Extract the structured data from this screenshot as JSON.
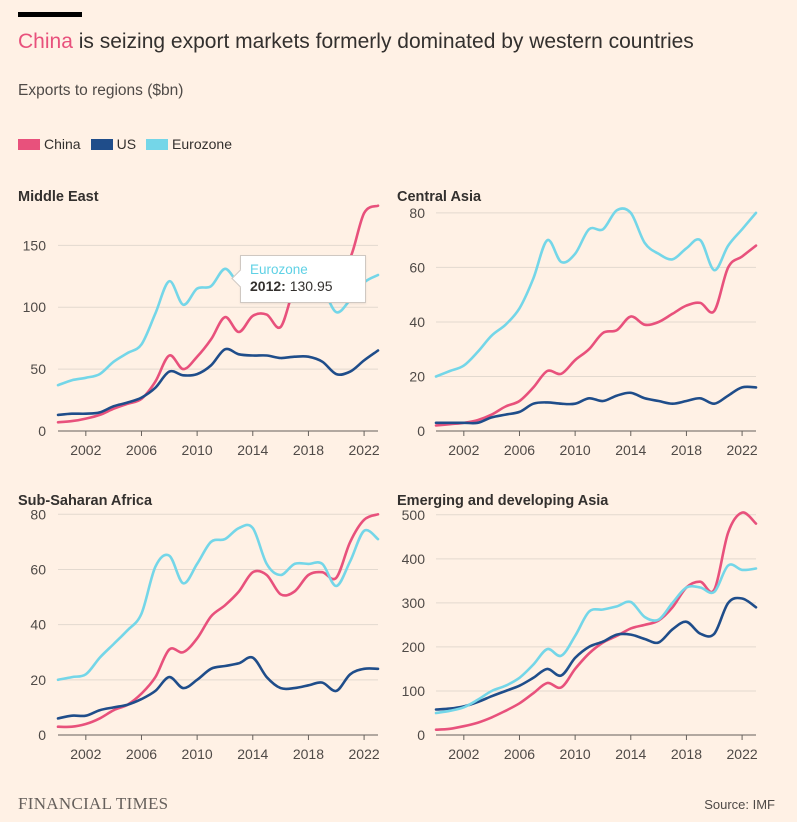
{
  "title": {
    "highlight": "China",
    "rest": " is seizing export markets formerly dominated by western countries"
  },
  "subtitle": "Exports to regions ($bn)",
  "legend": [
    {
      "name": "China",
      "color": "#e8517c"
    },
    {
      "name": "US",
      "color": "#1f4d8a"
    },
    {
      "name": "Eurozone",
      "color": "#74d6e8"
    }
  ],
  "tooltip": {
    "series": "Eurozone",
    "year": "2012:",
    "value": "130.95"
  },
  "footer": {
    "brand": "FINANCIAL TIMES",
    "source": "Source: IMF"
  },
  "chart_data": [
    {
      "type": "line",
      "title": "Middle East",
      "ylim": [
        0,
        185
      ],
      "yticks": [
        0,
        50,
        100,
        150
      ],
      "xticks": [
        2002,
        2006,
        2010,
        2014,
        2018,
        2022
      ],
      "xlim": [
        2000,
        2023
      ],
      "series": [
        {
          "name": "China",
          "color": "#e8517c",
          "x": [
            2000,
            2001,
            2002,
            2003,
            2004,
            2005,
            2006,
            2007,
            2008,
            2009,
            2010,
            2011,
            2012,
            2013,
            2014,
            2015,
            2016,
            2017,
            2018,
            2019,
            2020,
            2021,
            2022,
            2023
          ],
          "y": [
            7,
            8,
            10,
            13,
            18,
            22,
            26,
            40,
            61,
            50,
            60,
            74,
            92,
            80,
            93,
            94,
            84,
            115,
            120,
            127,
            135,
            140,
            176,
            182
          ]
        },
        {
          "name": "US",
          "color": "#1f4d8a",
          "x": [
            2000,
            2001,
            2002,
            2003,
            2004,
            2005,
            2006,
            2007,
            2008,
            2009,
            2010,
            2011,
            2012,
            2013,
            2014,
            2015,
            2016,
            2017,
            2018,
            2019,
            2020,
            2021,
            2022,
            2023
          ],
          "y": [
            13,
            14,
            14,
            15,
            20,
            23,
            27,
            35,
            48,
            45,
            46,
            53,
            66,
            62,
            61,
            61,
            59,
            60,
            60,
            56,
            46,
            48,
            57,
            65
          ]
        },
        {
          "name": "Eurozone",
          "color": "#74d6e8",
          "x": [
            2000,
            2001,
            2002,
            2003,
            2004,
            2005,
            2006,
            2007,
            2008,
            2009,
            2010,
            2011,
            2012,
            2013,
            2014,
            2015,
            2016,
            2017,
            2018,
            2019,
            2020,
            2021,
            2022,
            2023
          ],
          "y": [
            37,
            41,
            43,
            46,
            56,
            63,
            70,
            95,
            121,
            102,
            115,
            117,
            131,
            120,
            126,
            124,
            116,
            120,
            119,
            115,
            96,
            106,
            120,
            126
          ]
        }
      ]
    },
    {
      "type": "line",
      "title": "Central Asia",
      "ylim": [
        0,
        84
      ],
      "yticks": [
        0,
        20,
        40,
        60,
        80
      ],
      "xticks": [
        2002,
        2006,
        2010,
        2014,
        2018,
        2022
      ],
      "xlim": [
        2000,
        2023
      ],
      "series": [
        {
          "name": "China",
          "color": "#e8517c",
          "x": [
            2000,
            2001,
            2002,
            2003,
            2004,
            2005,
            2006,
            2007,
            2008,
            2009,
            2010,
            2011,
            2012,
            2013,
            2014,
            2015,
            2016,
            2017,
            2018,
            2019,
            2020,
            2021,
            2022,
            2023
          ],
          "y": [
            2,
            2.5,
            3,
            4,
            6,
            9,
            11,
            16,
            22,
            21,
            26,
            30,
            36,
            37,
            42,
            39,
            40,
            43,
            46,
            47,
            44,
            60,
            64,
            68
          ]
        },
        {
          "name": "US",
          "color": "#1f4d8a",
          "x": [
            2000,
            2001,
            2002,
            2003,
            2004,
            2005,
            2006,
            2007,
            2008,
            2009,
            2010,
            2011,
            2012,
            2013,
            2014,
            2015,
            2016,
            2017,
            2018,
            2019,
            2020,
            2021,
            2022,
            2023
          ],
          "y": [
            3,
            3,
            3,
            3,
            5,
            6,
            7,
            10,
            10.5,
            10,
            10,
            12,
            11,
            13,
            14,
            12,
            11,
            10,
            11,
            12,
            10,
            13,
            16,
            16
          ]
        },
        {
          "name": "Eurozone",
          "color": "#74d6e8",
          "x": [
            2000,
            2001,
            2002,
            2003,
            2004,
            2005,
            2006,
            2007,
            2008,
            2009,
            2010,
            2011,
            2012,
            2013,
            2014,
            2015,
            2016,
            2017,
            2018,
            2019,
            2020,
            2021,
            2022,
            2023
          ],
          "y": [
            20,
            22,
            24,
            29,
            35,
            39,
            45,
            56,
            70,
            62,
            65,
            74,
            74,
            81,
            80,
            69,
            65,
            63,
            67,
            70,
            59,
            68,
            74,
            80
          ]
        }
      ]
    },
    {
      "type": "line",
      "title": "Sub-Saharan Africa",
      "ylim": [
        0,
        83
      ],
      "yticks": [
        0,
        20,
        40,
        60,
        80
      ],
      "xticks": [
        2002,
        2006,
        2010,
        2014,
        2018,
        2022
      ],
      "xlim": [
        2000,
        2023
      ],
      "series": [
        {
          "name": "China",
          "color": "#e8517c",
          "x": [
            2000,
            2001,
            2002,
            2003,
            2004,
            2005,
            2006,
            2007,
            2008,
            2009,
            2010,
            2011,
            2012,
            2013,
            2014,
            2015,
            2016,
            2017,
            2018,
            2019,
            2020,
            2021,
            2022,
            2023
          ],
          "y": [
            3,
            3,
            4,
            6,
            9,
            11,
            15,
            21,
            31,
            30,
            35,
            43,
            47,
            52,
            59,
            58,
            51,
            52,
            58,
            59,
            57,
            70,
            78,
            80
          ]
        },
        {
          "name": "US",
          "color": "#1f4d8a",
          "x": [
            2000,
            2001,
            2002,
            2003,
            2004,
            2005,
            2006,
            2007,
            2008,
            2009,
            2010,
            2011,
            2012,
            2013,
            2014,
            2015,
            2016,
            2017,
            2018,
            2019,
            2020,
            2021,
            2022,
            2023
          ],
          "y": [
            6,
            7,
            7,
            9,
            10,
            11,
            13,
            16,
            21,
            17,
            20,
            24,
            25,
            26,
            28,
            21,
            17,
            17,
            18,
            19,
            16,
            22,
            24,
            24
          ]
        },
        {
          "name": "Eurozone",
          "color": "#74d6e8",
          "x": [
            2000,
            2001,
            2002,
            2003,
            2004,
            2005,
            2006,
            2007,
            2008,
            2009,
            2010,
            2011,
            2012,
            2013,
            2014,
            2015,
            2016,
            2017,
            2018,
            2019,
            2020,
            2021,
            2022,
            2023
          ],
          "y": [
            20,
            21,
            22,
            28,
            33,
            38,
            44,
            61,
            65,
            55,
            62,
            70,
            71,
            75,
            75,
            62,
            58,
            62,
            62,
            62,
            54,
            63,
            74,
            71
          ]
        }
      ]
    },
    {
      "type": "line",
      "title": "Emerging and developing Asia",
      "ylim": [
        0,
        520
      ],
      "yticks": [
        0,
        100,
        200,
        300,
        400,
        500
      ],
      "xticks": [
        2002,
        2006,
        2010,
        2014,
        2018,
        2022
      ],
      "xlim": [
        2000,
        2023
      ],
      "series": [
        {
          "name": "China",
          "color": "#e8517c",
          "x": [
            2000,
            2001,
            2002,
            2003,
            2004,
            2005,
            2006,
            2007,
            2008,
            2009,
            2010,
            2011,
            2012,
            2013,
            2014,
            2015,
            2016,
            2017,
            2018,
            2019,
            2020,
            2021,
            2022,
            2023
          ],
          "y": [
            12,
            14,
            20,
            28,
            40,
            55,
            72,
            95,
            118,
            108,
            150,
            185,
            210,
            225,
            242,
            250,
            260,
            290,
            335,
            348,
            330,
            460,
            505,
            480
          ]
        },
        {
          "name": "US",
          "color": "#1f4d8a",
          "x": [
            2000,
            2001,
            2002,
            2003,
            2004,
            2005,
            2006,
            2007,
            2008,
            2009,
            2010,
            2011,
            2012,
            2013,
            2014,
            2015,
            2016,
            2017,
            2018,
            2019,
            2020,
            2021,
            2022,
            2023
          ],
          "y": [
            58,
            60,
            65,
            75,
            88,
            100,
            112,
            130,
            150,
            135,
            175,
            200,
            212,
            228,
            228,
            218,
            210,
            240,
            257,
            230,
            230,
            300,
            310,
            290
          ]
        },
        {
          "name": "Eurozone",
          "color": "#74d6e8",
          "x": [
            2000,
            2001,
            2002,
            2003,
            2004,
            2005,
            2006,
            2007,
            2008,
            2009,
            2010,
            2011,
            2012,
            2013,
            2014,
            2015,
            2016,
            2017,
            2018,
            2019,
            2020,
            2021,
            2022,
            2023
          ],
          "y": [
            50,
            55,
            63,
            80,
            100,
            112,
            130,
            160,
            195,
            180,
            225,
            280,
            285,
            292,
            302,
            268,
            262,
            300,
            335,
            335,
            325,
            385,
            375,
            378
          ]
        }
      ]
    }
  ]
}
